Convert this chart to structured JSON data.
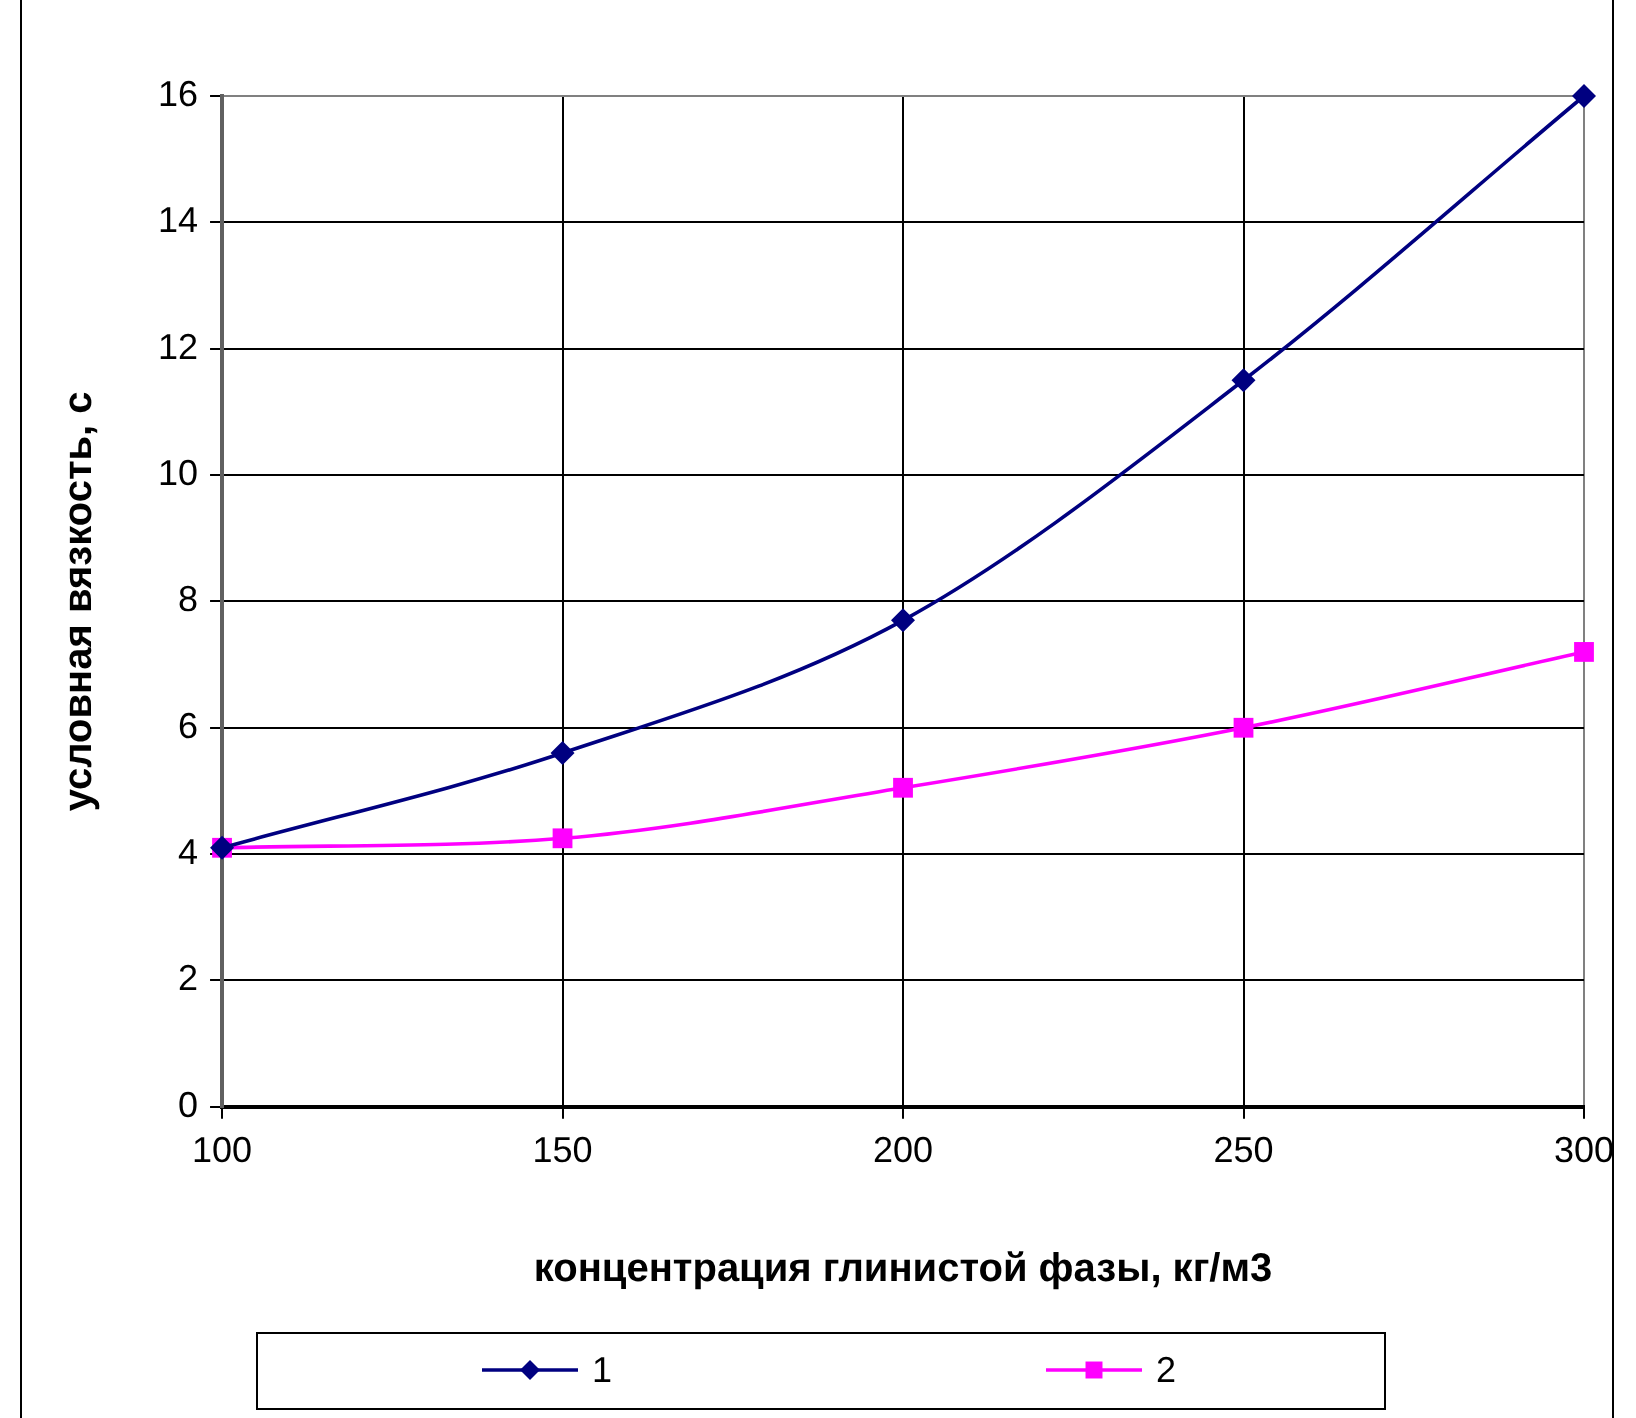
{
  "chart_data": {
    "type": "line",
    "xlabel": "концентрация глинистой фазы, кг/м3",
    "ylabel": "условная вязкость, с",
    "x": [
      100,
      150,
      200,
      250,
      300
    ],
    "xlim": [
      100,
      300
    ],
    "xticks": [
      100,
      150,
      200,
      250,
      300
    ],
    "ylim": [
      0,
      16
    ],
    "yticks": [
      0,
      2,
      4,
      6,
      8,
      10,
      12,
      14,
      16
    ],
    "grid": true,
    "legend": "bottom",
    "line_style": "solid",
    "series": [
      {
        "name": "1",
        "color": "#000080",
        "marker": "diamond",
        "values": [
          4.1,
          5.6,
          7.7,
          11.5,
          16
        ]
      },
      {
        "name": "2",
        "color": "#ff00ff",
        "marker": "square",
        "values": [
          4.1,
          4.25,
          5.05,
          6.0,
          7.2
        ]
      }
    ]
  }
}
